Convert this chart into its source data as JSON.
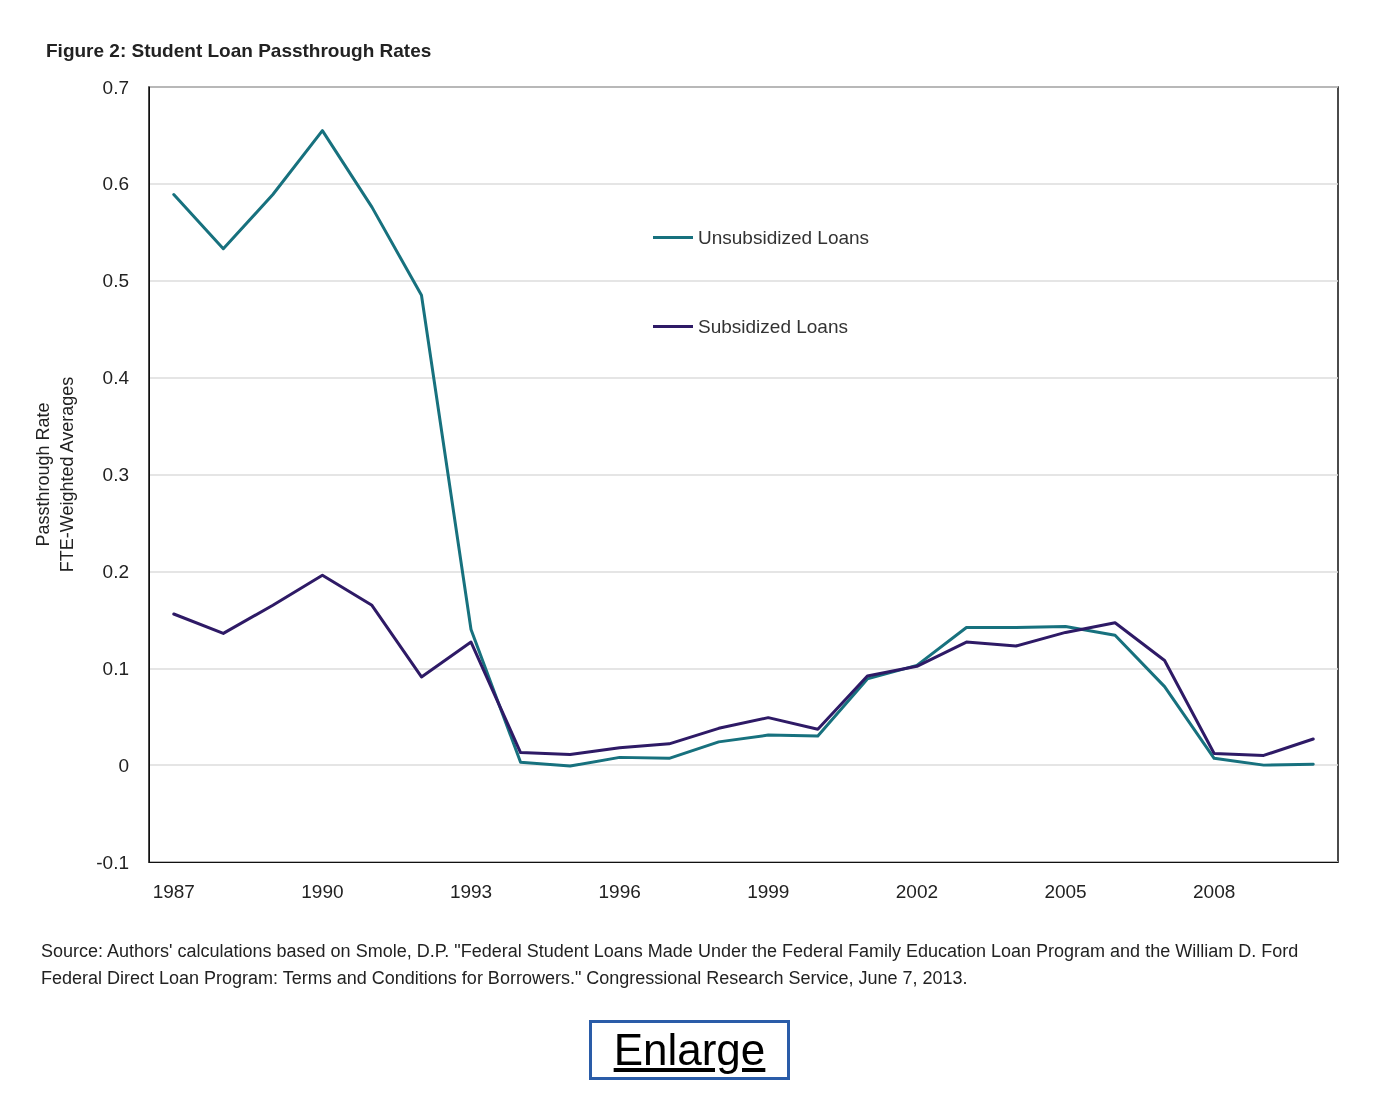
{
  "chart_data": {
    "type": "line",
    "title": "Figure 2: Student Loan Passthrough Rates",
    "ylabel": "Passthrough Rate\nFTE-Weighted Averages",
    "x": [
      1987,
      1988,
      1989,
      1990,
      1991,
      1992,
      1993,
      1994,
      1995,
      1996,
      1997,
      1998,
      1999,
      2000,
      2001,
      2002,
      2003,
      2004,
      2005,
      2006,
      2007,
      2008,
      2009,
      2010
    ],
    "series": [
      {
        "name": "Unsubsidized Loans",
        "color": "#17717e",
        "values": [
          0.589,
          0.533,
          0.589,
          0.655,
          0.576,
          0.485,
          0.14,
          0.003,
          -0.001,
          0.008,
          0.007,
          0.024,
          0.031,
          0.03,
          0.089,
          0.103,
          0.142,
          0.142,
          0.143,
          0.134,
          0.081,
          0.007,
          0.0,
          0.001
        ]
      },
      {
        "name": "Subsidized Loans",
        "color": "#2e1a66",
        "values": [
          0.156,
          0.136,
          0.165,
          0.196,
          0.165,
          0.091,
          0.127,
          0.013,
          0.011,
          0.018,
          0.022,
          0.038,
          0.049,
          0.037,
          0.092,
          0.102,
          0.127,
          0.123,
          0.137,
          0.147,
          0.108,
          0.012,
          0.01,
          0.027
        ]
      }
    ],
    "xlim": [
      1986.5,
      2010.5
    ],
    "xticks": [
      1987,
      1990,
      1993,
      1996,
      1999,
      2002,
      2005,
      2008
    ],
    "ylim": [
      -0.1,
      0.7
    ],
    "yticks": [
      -0.1,
      0,
      0.1,
      0.2,
      0.3,
      0.4,
      0.5,
      0.6,
      0.7
    ],
    "grid": "y",
    "legend": "top",
    "marker": "none",
    "line_style": "solid",
    "annotations": [
      "Source: Authors' calculations based on Smole, D.P. \"Federal Student Loans Made Under the Federal Family Education Loan Program and the William D. Ford Federal Direct Loan Program: Terms and Conditions for Borrowers.\" Congressional Research Service, June 7, 2013.",
      "Enlarge"
    ]
  }
}
